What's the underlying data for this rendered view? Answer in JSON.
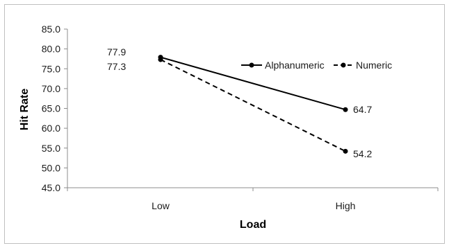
{
  "chart_data": {
    "type": "line",
    "title": "",
    "xlabel": "Load",
    "ylabel": "Hit Rate",
    "categories": [
      "Low",
      "High"
    ],
    "ylim": [
      45.0,
      85.0
    ],
    "yticks": [
      "45.0",
      "50.0",
      "55.0",
      "60.0",
      "65.0",
      "70.0",
      "75.0",
      "80.0",
      "85.0"
    ],
    "grid": false,
    "legend_position": "top-right",
    "series": [
      {
        "name": "Alphanumeric",
        "values": [
          77.9,
          64.7
        ],
        "value_labels": [
          "77.9",
          "64.7"
        ],
        "line_style": "solid",
        "color": "#000000"
      },
      {
        "name": "Numeric",
        "values": [
          77.3,
          54.2
        ],
        "value_labels": [
          "77.3",
          "54.2"
        ],
        "line_style": "dashed",
        "color": "#000000"
      }
    ]
  }
}
